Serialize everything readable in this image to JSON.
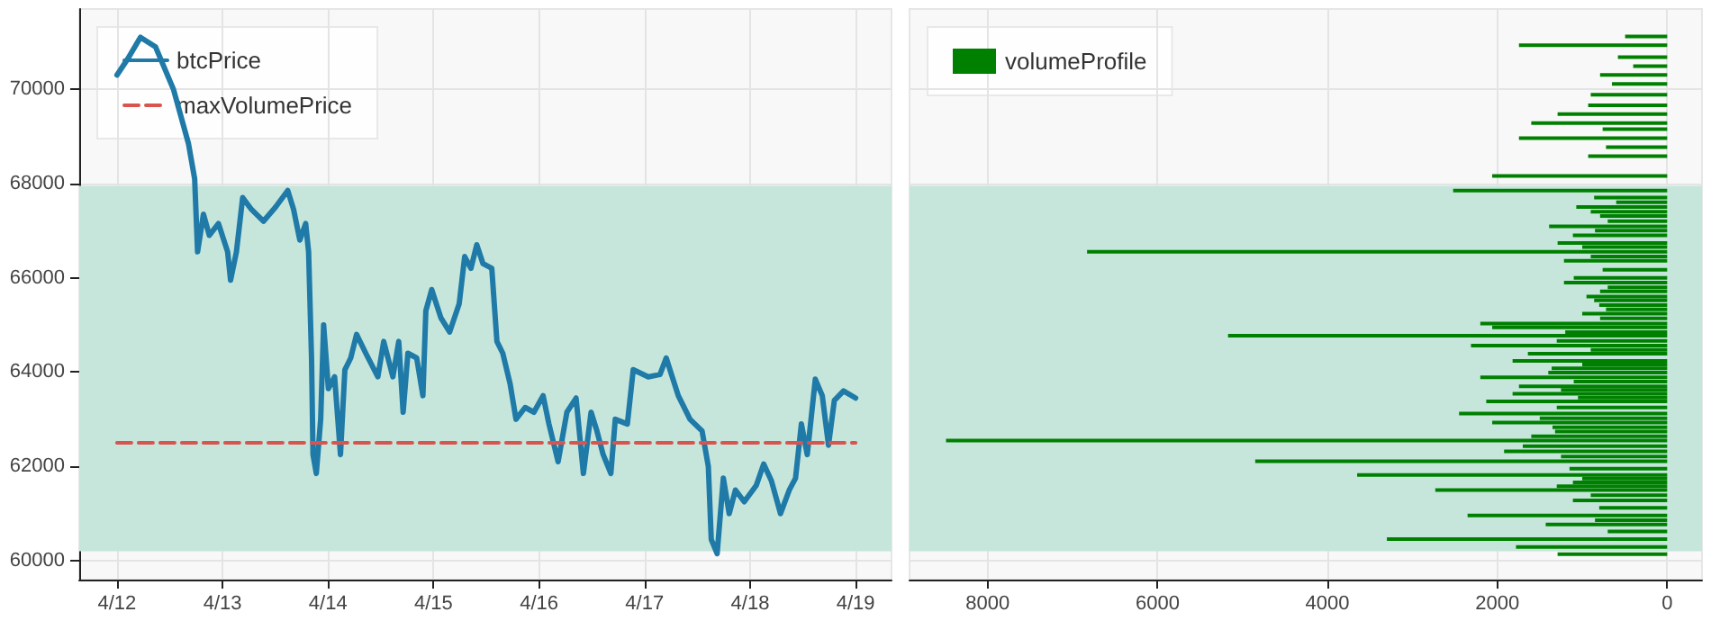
{
  "chart_data": [
    {
      "type": "line",
      "xlim": [
        "--04-11T15:25",
        "--04-19T08:10"
      ],
      "xticks": [
        {
          "value": "--04-12",
          "label": "4/12"
        },
        {
          "value": "--04-13",
          "label": "4/13"
        },
        {
          "value": "--04-14",
          "label": "4/14"
        },
        {
          "value": "--04-15",
          "label": "4/15"
        },
        {
          "value": "--04-16",
          "label": "4/16"
        },
        {
          "value": "--04-17",
          "label": "4/17"
        },
        {
          "value": "--04-18",
          "label": "4/18"
        },
        {
          "value": "--04-19",
          "label": "4/19"
        }
      ],
      "ylim": [
        59600,
        71700
      ],
      "yticks": [
        60000,
        62000,
        64000,
        66000,
        68000,
        70000
      ],
      "grid": true,
      "legend": "top left",
      "bands": [
        {
          "axis": "y",
          "from": 60200,
          "to": 67950,
          "color": "#c6e6dc"
        }
      ],
      "series": [
        {
          "name": "btcPrice",
          "color": "#1f7aa8",
          "line_style": "solid",
          "x": [
            "--04-12T00:00",
            "--04-12T02:30",
            "--04-12T05:20",
            "--04-12T08:45",
            "--04-12T12:50",
            "--04-12T16:15",
            "--04-12T17:40",
            "--04-12T18:20",
            "--04-12T19:40",
            "--04-12T21:00",
            "--04-12T23:05",
            "--04-13T01:10",
            "--04-13T01:50",
            "--04-13T03:10",
            "--04-13T04:35",
            "--04-13T06:35",
            "--04-13T09:20",
            "--04-13T12:05",
            "--04-13T14:50",
            "--04-13T16:10",
            "--04-13T17:35",
            "--04-13T18:55",
            "--04-13T19:35",
            "--04-13T20:15",
            "--04-13T20:35",
            "--04-13T21:20",
            "--04-13T22:20",
            "--04-13T23:00",
            "--04-14T00:05",
            "--04-14T01:30",
            "--04-14T02:50",
            "--04-14T03:50",
            "--04-14T05:10",
            "--04-14T06:30",
            "--04-14T08:35",
            "--04-14T11:20",
            "--04-14T12:40",
            "--04-14T14:45",
            "--04-14T16:05",
            "--04-14T17:05",
            "--04-14T18:10",
            "--04-14T20:10",
            "--04-14T21:35",
            "--04-14T22:15",
            "--04-14T23:35",
            "--04-15T01:40",
            "--04-15T03:40",
            "--04-15T05:50",
            "--04-15T07:05",
            "--04-15T08:30",
            "--04-15T09:50",
            "--04-15T11:15",
            "--04-15T13:15",
            "--04-15T14:25",
            "--04-15T15:45",
            "--04-15T17:25",
            "--04-15T18:45",
            "--04-15T20:50",
            "--04-15T22:50",
            "--04-16T00:55",
            "--04-16T02:15",
            "--04-16T04:20",
            "--04-16T06:20",
            "--04-16T08:25",
            "--04-16T10:05",
            "--04-16T11:50",
            "--04-16T13:10",
            "--04-16T14:35",
            "--04-16T16:20",
            "--04-16T17:20",
            "--04-16T20:05",
            "--04-16T21:25",
            "--04-17T00:50",
            "--04-17T03:30",
            "--04-17T04:55",
            "--04-17T07:40",
            "--04-17T10:20",
            "--04-17T13:05",
            "--04-17T14:30",
            "--04-17T15:10",
            "--04-17T16:30",
            "--04-17T17:55",
            "--04-17T19:15",
            "--04-17T20:40",
            "--04-17T22:40",
            "--04-18T01:25",
            "--04-18T03:05",
            "--04-18T04:50",
            "--04-18T06:55",
            "--04-18T08:55",
            "--04-18T10:20",
            "--04-18T11:40",
            "--04-18T13:00",
            "--04-18T14:50",
            "--04-18T16:25",
            "--04-18T17:50",
            "--04-18T19:10",
            "--04-18T21:15",
            "--04-19T00:00"
          ],
          "values": [
            70300,
            70650,
            71100,
            70900,
            70000,
            68850,
            68100,
            66550,
            67350,
            66900,
            67150,
            66550,
            65950,
            66550,
            67700,
            67450,
            67200,
            67500,
            67850,
            67450,
            66800,
            67150,
            66550,
            64300,
            62250,
            61850,
            63000,
            65000,
            63650,
            63900,
            62250,
            64050,
            64300,
            64800,
            64400,
            63900,
            64650,
            63900,
            64650,
            63150,
            64400,
            64300,
            63500,
            65300,
            65750,
            65150,
            64850,
            65450,
            66450,
            66200,
            66700,
            66300,
            66200,
            64650,
            64400,
            63750,
            63000,
            63250,
            63150,
            63500,
            62900,
            62100,
            63150,
            63450,
            61850,
            63150,
            62750,
            62250,
            61850,
            63000,
            62900,
            64050,
            63900,
            63950,
            64300,
            63500,
            63000,
            62750,
            62000,
            60450,
            60150,
            61750,
            61000,
            61500,
            61250,
            61600,
            62050,
            61700,
            61000,
            61500,
            61750,
            62900,
            62250,
            63850,
            63500,
            62450,
            63400,
            63600,
            63450
          ]
        },
        {
          "name": "maxVolumePrice",
          "color": "#d9534f",
          "line_style": "dashed",
          "x": [
            "--04-12T00:00",
            "--04-19T00:00"
          ],
          "values": [
            62500,
            62500
          ]
        }
      ]
    },
    {
      "type": "bar",
      "orientation": "horizontal",
      "xlim": [
        8920,
        -410
      ],
      "xticks": [
        8000,
        6000,
        4000,
        2000,
        0
      ],
      "ylim": [
        59600,
        71700
      ],
      "yticks": [
        60000,
        62000,
        64000,
        66000,
        68000,
        70000
      ],
      "tick_labels": "x",
      "grid": true,
      "legend": "top left",
      "bands": [
        {
          "axis": "y",
          "from": 60200,
          "to": 67950,
          "color": "#c6e6dc"
        }
      ],
      "series": [
        {
          "name": "volumeProfile",
          "color": "#008000",
          "x": [
            71120,
            70930,
            70680,
            70490,
            70300,
            70110,
            69880,
            69660,
            69470,
            69280,
            69150,
            68960,
            68770,
            68580,
            68160,
            67850,
            67700,
            67600,
            67500,
            67400,
            67310,
            67200,
            67090,
            67000,
            66900,
            66740,
            66650,
            66550,
            66450,
            66360,
            66170,
            66000,
            65900,
            65800,
            65710,
            65600,
            65520,
            65420,
            65330,
            65240,
            65140,
            65030,
            64950,
            64850,
            64770,
            64660,
            64560,
            64470,
            64390,
            64240,
            64160,
            64080,
            63990,
            63890,
            63800,
            63700,
            63620,
            63540,
            63460,
            63380,
            63250,
            63120,
            63020,
            62930,
            62830,
            62740,
            62640,
            62550,
            62430,
            62320,
            62210,
            62110,
            61950,
            61820,
            61740,
            61660,
            61580,
            61500,
            61390,
            61280,
            61120,
            60960,
            60860,
            60770,
            60620,
            60460,
            60290,
            60140
          ],
          "values": [
            495,
            1745,
            580,
            400,
            790,
            650,
            900,
            930,
            1290,
            1600,
            760,
            1745,
            720,
            930,
            2060,
            2520,
            860,
            600,
            1070,
            900,
            790,
            700,
            1390,
            850,
            1110,
            1290,
            1000,
            6830,
            900,
            1215,
            760,
            1100,
            1215,
            700,
            790,
            950,
            860,
            800,
            720,
            1000,
            790,
            2200,
            2060,
            1200,
            5170,
            1300,
            2310,
            900,
            1640,
            1820,
            1000,
            1360,
            1400,
            2200,
            1100,
            1745,
            1250,
            1820,
            1050,
            2130,
            1300,
            2450,
            1500,
            2060,
            1350,
            1320,
            1600,
            8490,
            1700,
            1920,
            1250,
            4850,
            1150,
            3650,
            1000,
            1110,
            1300,
            2730,
            900,
            1110,
            800,
            2350,
            850,
            1430,
            700,
            3300,
            1780,
            1290
          ]
        }
      ]
    }
  ]
}
